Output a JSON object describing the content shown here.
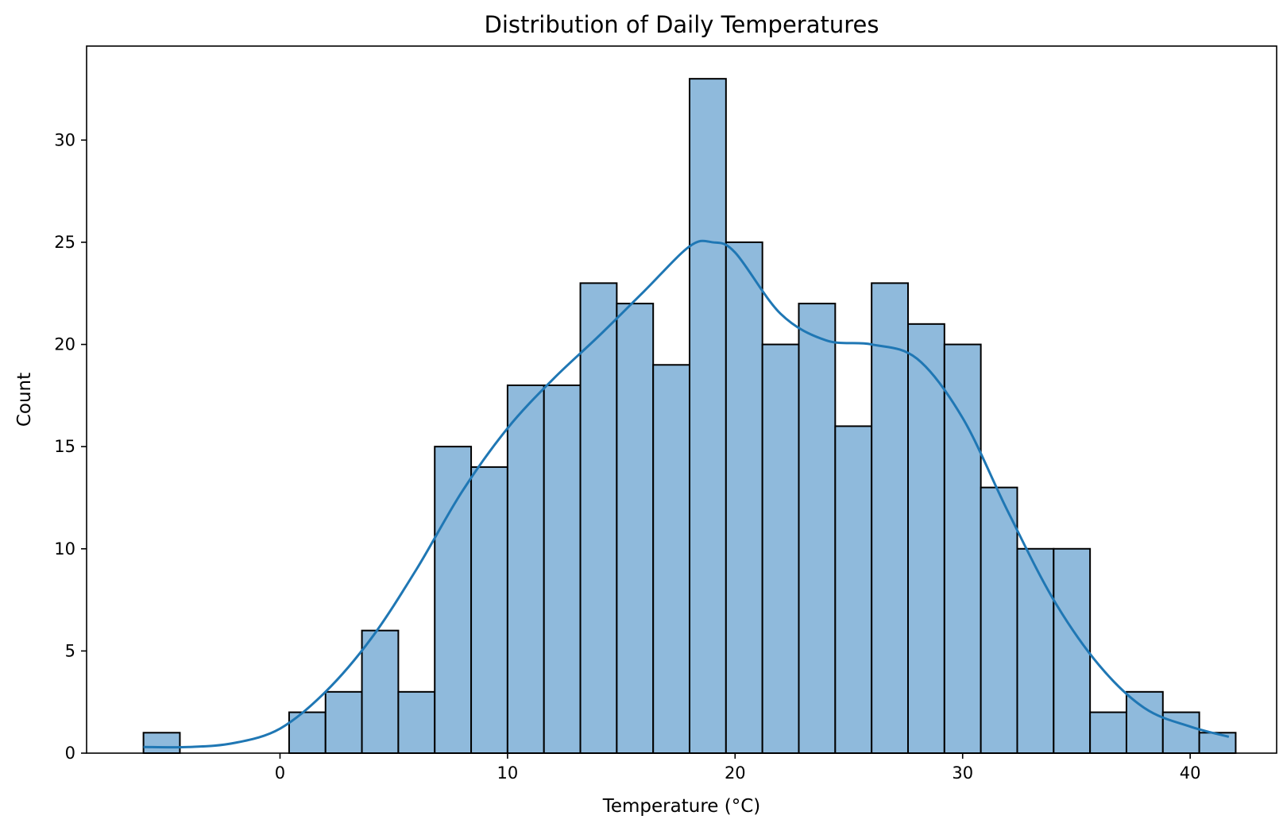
{
  "chart_data": {
    "type": "bar",
    "title": "Distribution of Daily Temperatures",
    "xlabel": "Temperature (°C)",
    "ylabel": "Count",
    "xlim": [
      -8.5,
      43.8
    ],
    "ylim": [
      0,
      34.6
    ],
    "xticks": [
      0,
      10,
      20,
      30,
      40
    ],
    "xtick_labels": [
      "0",
      "10",
      "20",
      "30",
      "40"
    ],
    "yticks": [
      0,
      5,
      10,
      15,
      20,
      25,
      30
    ],
    "ytick_labels": [
      "0",
      "5",
      "10",
      "15",
      "20",
      "25",
      "30"
    ],
    "grid": false,
    "bins": [
      {
        "x0": -6.0,
        "x1": -4.4,
        "count": 1
      },
      {
        "x0": -4.4,
        "x1": -2.8,
        "count": 0
      },
      {
        "x0": -2.8,
        "x1": -1.2,
        "count": 0
      },
      {
        "x0": -1.2,
        "x1": 0.4,
        "count": 0
      },
      {
        "x0": 0.4,
        "x1": 2.0,
        "count": 2
      },
      {
        "x0": 2.0,
        "x1": 3.6,
        "count": 3
      },
      {
        "x0": 3.6,
        "x1": 5.2,
        "count": 6
      },
      {
        "x0": 5.2,
        "x1": 6.8,
        "count": 3
      },
      {
        "x0": 6.8,
        "x1": 8.4,
        "count": 15
      },
      {
        "x0": 8.4,
        "x1": 10.0,
        "count": 14
      },
      {
        "x0": 10.0,
        "x1": 11.6,
        "count": 18
      },
      {
        "x0": 11.6,
        "x1": 13.2,
        "count": 18
      },
      {
        "x0": 13.2,
        "x1": 14.8,
        "count": 23
      },
      {
        "x0": 14.8,
        "x1": 16.4,
        "count": 22
      },
      {
        "x0": 16.4,
        "x1": 18.0,
        "count": 19
      },
      {
        "x0": 18.0,
        "x1": 19.6,
        "count": 33
      },
      {
        "x0": 19.6,
        "x1": 21.2,
        "count": 25
      },
      {
        "x0": 21.2,
        "x1": 22.8,
        "count": 20
      },
      {
        "x0": 22.8,
        "x1": 24.4,
        "count": 22
      },
      {
        "x0": 24.4,
        "x1": 26.0,
        "count": 16
      },
      {
        "x0": 26.0,
        "x1": 27.6,
        "count": 23
      },
      {
        "x0": 27.6,
        "x1": 29.2,
        "count": 21
      },
      {
        "x0": 29.2,
        "x1": 30.8,
        "count": 20
      },
      {
        "x0": 30.8,
        "x1": 32.4,
        "count": 13
      },
      {
        "x0": 32.4,
        "x1": 34.0,
        "count": 10
      },
      {
        "x0": 34.0,
        "x1": 35.6,
        "count": 10
      },
      {
        "x0": 35.6,
        "x1": 37.2,
        "count": 2
      },
      {
        "x0": 37.2,
        "x1": 38.8,
        "count": 3
      },
      {
        "x0": 38.8,
        "x1": 40.4,
        "count": 2
      },
      {
        "x0": 40.4,
        "x1": 42.0,
        "count": 1
      }
    ],
    "kde": {
      "x": [
        -6,
        -4,
        -2,
        0,
        2,
        4,
        6,
        8,
        10,
        12,
        14,
        16,
        18,
        19,
        20,
        22,
        24,
        26,
        28,
        30,
        32,
        34,
        36,
        38,
        40,
        41.7
      ],
      "y": [
        0.3,
        0.3,
        0.5,
        1.2,
        3.0,
        5.6,
        9.0,
        12.8,
        15.9,
        18.3,
        20.4,
        22.6,
        24.8,
        25.0,
        24.5,
        21.5,
        20.2,
        20.0,
        19.3,
        16.4,
        11.8,
        7.5,
        4.3,
        2.2,
        1.3,
        0.8
      ]
    },
    "colors": {
      "bar_fill": "#8fbadc",
      "bar_edge": "#000000",
      "kde_line": "#1f77b4",
      "axes": "#000000"
    }
  }
}
